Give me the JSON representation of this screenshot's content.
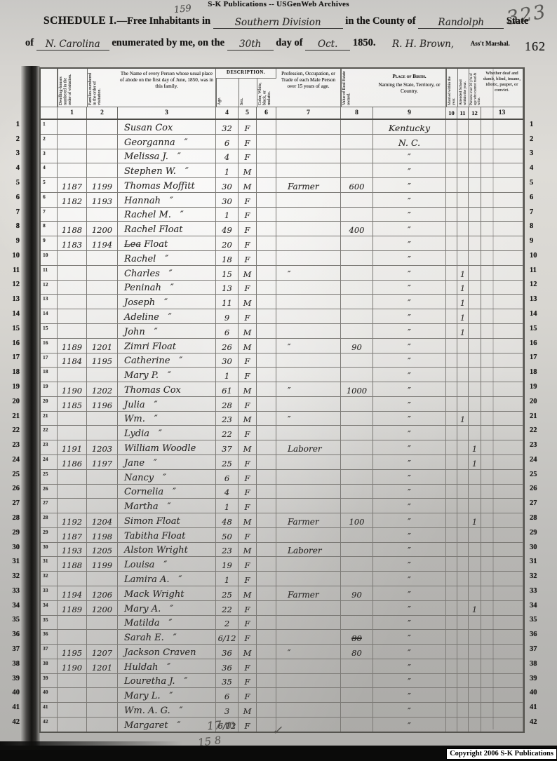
{
  "scan": {
    "top_label": "S-K Publications -- USGenWeb Archives",
    "handwritten_small_number": "159",
    "handwritten_page_corner": "323",
    "page_number_stamp": "162",
    "bottom_tally_1": "17 m",
    "bottom_tally_2": "15 8",
    "bottom_check_mark": "✓",
    "copyright": "Copyright 2006 S-K Publications"
  },
  "title": {
    "schedule_prefix": "Schedule I.",
    "line1_part1": "—Free Inhabitants in",
    "division": "Southern Division",
    "line1_part2": "in the County of",
    "county": "Randolph",
    "line1_part3": "State",
    "line2_part1": "of",
    "state": "N. Carolina",
    "line2_part2": "enumerated by me, on the",
    "day": "30th",
    "line2_part3": "day of",
    "month": "Oct.",
    "year": "1850.",
    "marshal_signature": "R. H. Brown,",
    "marshal_title": "Ass't Marshal."
  },
  "table": {
    "headers": {
      "col1": "Dwelling-houses numbered in the order of visitation.",
      "col2": "Families numbered in the order of visitation.",
      "col3": "The Name of every Person whose usual place of abode on the first day of June, 1850, was in this family.",
      "description": "DESCRIPTION.",
      "col4": "Age.",
      "col5": "Sex.",
      "col6": "Color, White, black, or mulatto.",
      "col7": "Profession, Occupation, or Trade of each Male Person over 15 years of age.",
      "col8": "Value of Real Estate owned.",
      "col9a": "Place of Birth.",
      "col9b": "Naming the State, Territory, or Country.",
      "col10": "Married within the year.",
      "col11": "Attended School within the year.",
      "col12": "Persons over 20 y'rs of age who cannot read & write.",
      "col13": "Whether deaf and dumb, blind, insane, idiotic, pauper, or convict."
    },
    "column_numbers": [
      "1",
      "2",
      "3",
      "4",
      "5",
      "6",
      "7",
      "8",
      "9",
      "10",
      "11",
      "12",
      "13"
    ],
    "rows": [
      {
        "l": "1",
        "n": "Susan Cox",
        "a": "32",
        "s": "F",
        "b": "Kentucky"
      },
      {
        "l": "2",
        "n": "Georganna ″",
        "a": "6",
        "s": "F",
        "b": "N. C."
      },
      {
        "l": "3",
        "n": "Melissa J. ″",
        "a": "4",
        "s": "F",
        "b": "″"
      },
      {
        "l": "4",
        "n": "Stephen W. ″",
        "a": "1",
        "s": "M",
        "b": "″"
      },
      {
        "l": "5",
        "d": "1187",
        "f": "1199",
        "n": "Thomas Moffitt",
        "a": "30",
        "s": "M",
        "o": "Farmer",
        "v": "600",
        "b": "″"
      },
      {
        "l": "6",
        "d": "1182",
        "f": "1193",
        "n": "Hannah ″",
        "a": "30",
        "s": "F",
        "b": "″"
      },
      {
        "l": "7",
        "n": "Rachel M. ″",
        "a": "1",
        "s": "F",
        "b": "″"
      },
      {
        "l": "8",
        "d": "1188",
        "f": "1200",
        "n": "Rachel Float",
        "a": "49",
        "s": "F",
        "v": "400",
        "b": "″"
      },
      {
        "l": "9",
        "d": "1183",
        "f": "1194",
        "n": "L̶e̶a̶ Float",
        "a": "20",
        "s": "F",
        "b": "″"
      },
      {
        "l": "10",
        "n": "Rachel ″",
        "a": "18",
        "s": "F",
        "b": "″"
      },
      {
        "l": "11",
        "n": "Charles ″",
        "a": "15",
        "s": "M",
        "o": "″",
        "b": "″",
        "s11": "1"
      },
      {
        "l": "12",
        "n": "Peninah ″",
        "a": "13",
        "s": "F",
        "b": "″",
        "s11": "1"
      },
      {
        "l": "13",
        "n": "Joseph ″",
        "a": "11",
        "s": "M",
        "b": "″",
        "s11": "1"
      },
      {
        "l": "14",
        "n": "Adeline ″",
        "a": "9",
        "s": "F",
        "b": "″",
        "s11": "1"
      },
      {
        "l": "15",
        "n": "John ″",
        "a": "6",
        "s": "M",
        "b": "″",
        "s11": "1"
      },
      {
        "l": "16",
        "d": "1189",
        "f": "1201",
        "n": "Zimri Float",
        "a": "26",
        "s": "M",
        "o": "″",
        "v": "90",
        "b": "″"
      },
      {
        "l": "17",
        "d": "1184",
        "f": "1195",
        "n": "Catherine ″",
        "a": "30",
        "s": "F",
        "b": "″"
      },
      {
        "l": "18",
        "n": "Mary P. ″",
        "a": "1",
        "s": "F",
        "b": "″"
      },
      {
        "l": "19",
        "d": "1190",
        "f": "1202",
        "n": "Thomas Cox",
        "a": "61",
        "s": "M",
        "o": "″",
        "v": "1000",
        "b": "″"
      },
      {
        "l": "20",
        "d": "1185",
        "f": "1196",
        "n": "Julia ″",
        "a": "28",
        "s": "F",
        "b": "″"
      },
      {
        "l": "21",
        "n": "Wm. ″",
        "a": "23",
        "s": "M",
        "o": "″",
        "b": "″",
        "s11": "1"
      },
      {
        "l": "22",
        "n": "Lydia ″",
        "a": "22",
        "s": "F",
        "b": "″"
      },
      {
        "l": "23",
        "d": "1191",
        "f": "1203",
        "n": "William Woodle",
        "a": "37",
        "s": "M",
        "o": "Laborer",
        "b": "″",
        "r12": "1"
      },
      {
        "l": "24",
        "d": "1186",
        "f": "1197",
        "n": "Jane ″",
        "a": "25",
        "s": "F",
        "b": "″",
        "r12": "1"
      },
      {
        "l": "25",
        "n": "Nancy ″",
        "a": "6",
        "s": "F",
        "b": "″"
      },
      {
        "l": "26",
        "n": "Cornelia ″",
        "a": "4",
        "s": "F",
        "b": "″"
      },
      {
        "l": "27",
        "n": "Martha ″",
        "a": "1",
        "s": "F",
        "b": "″"
      },
      {
        "l": "28",
        "d": "1192",
        "f": "1204",
        "n": "Simon Float",
        "a": "48",
        "s": "M",
        "o": "Farmer",
        "v": "100",
        "b": "″",
        "r12": "1"
      },
      {
        "l": "29",
        "d": "1187",
        "f": "1198",
        "n": "Tabitha Float",
        "a": "50",
        "s": "F",
        "b": "″"
      },
      {
        "l": "30",
        "d": "1193",
        "f": "1205",
        "n": "Alston Wright",
        "a": "23",
        "s": "M",
        "o": "Laborer",
        "b": "″"
      },
      {
        "l": "31",
        "d": "1188",
        "f": "1199",
        "n": "Louisa ″",
        "a": "19",
        "s": "F",
        "b": "″"
      },
      {
        "l": "32",
        "n": "Lamira A. ″",
        "a": "1",
        "s": "F",
        "b": "″"
      },
      {
        "l": "33",
        "d": "1194",
        "f": "1206",
        "n": "Mack Wright",
        "a": "25",
        "s": "M",
        "o": "Farmer",
        "v": "90",
        "b": "″"
      },
      {
        "l": "34",
        "d": "1189",
        "f": "1200",
        "n": "Mary A. ″",
        "a": "22",
        "s": "F",
        "b": "″",
        "r12": "1"
      },
      {
        "l": "35",
        "n": "Matilda ″",
        "a": "2",
        "s": "F",
        "b": "″"
      },
      {
        "l": "36",
        "n": "Sarah E. ″",
        "a": "6/12",
        "s": "F",
        "v": "80",
        "vstruck": true,
        "b": "″"
      },
      {
        "l": "37",
        "d": "1195",
        "f": "1207",
        "n": "Jackson Craven",
        "a": "36",
        "s": "M",
        "o": "″",
        "v": "80",
        "b": "″"
      },
      {
        "l": "38",
        "d": "1190",
        "f": "1201",
        "n": "Huldah ″",
        "a": "36",
        "s": "F",
        "b": "″"
      },
      {
        "l": "39",
        "n": "Louretha J. ″",
        "a": "35",
        "s": "F",
        "b": "″"
      },
      {
        "l": "40",
        "n": "Mary L. ″",
        "a": "6",
        "s": "F",
        "b": "″"
      },
      {
        "l": "41",
        "n": "Wm. A. G. ″",
        "a": "3",
        "s": "M",
        "b": "″"
      },
      {
        "l": "42",
        "n": "Margaret ″",
        "a": "6/12",
        "s": "F",
        "b": "″"
      }
    ]
  }
}
